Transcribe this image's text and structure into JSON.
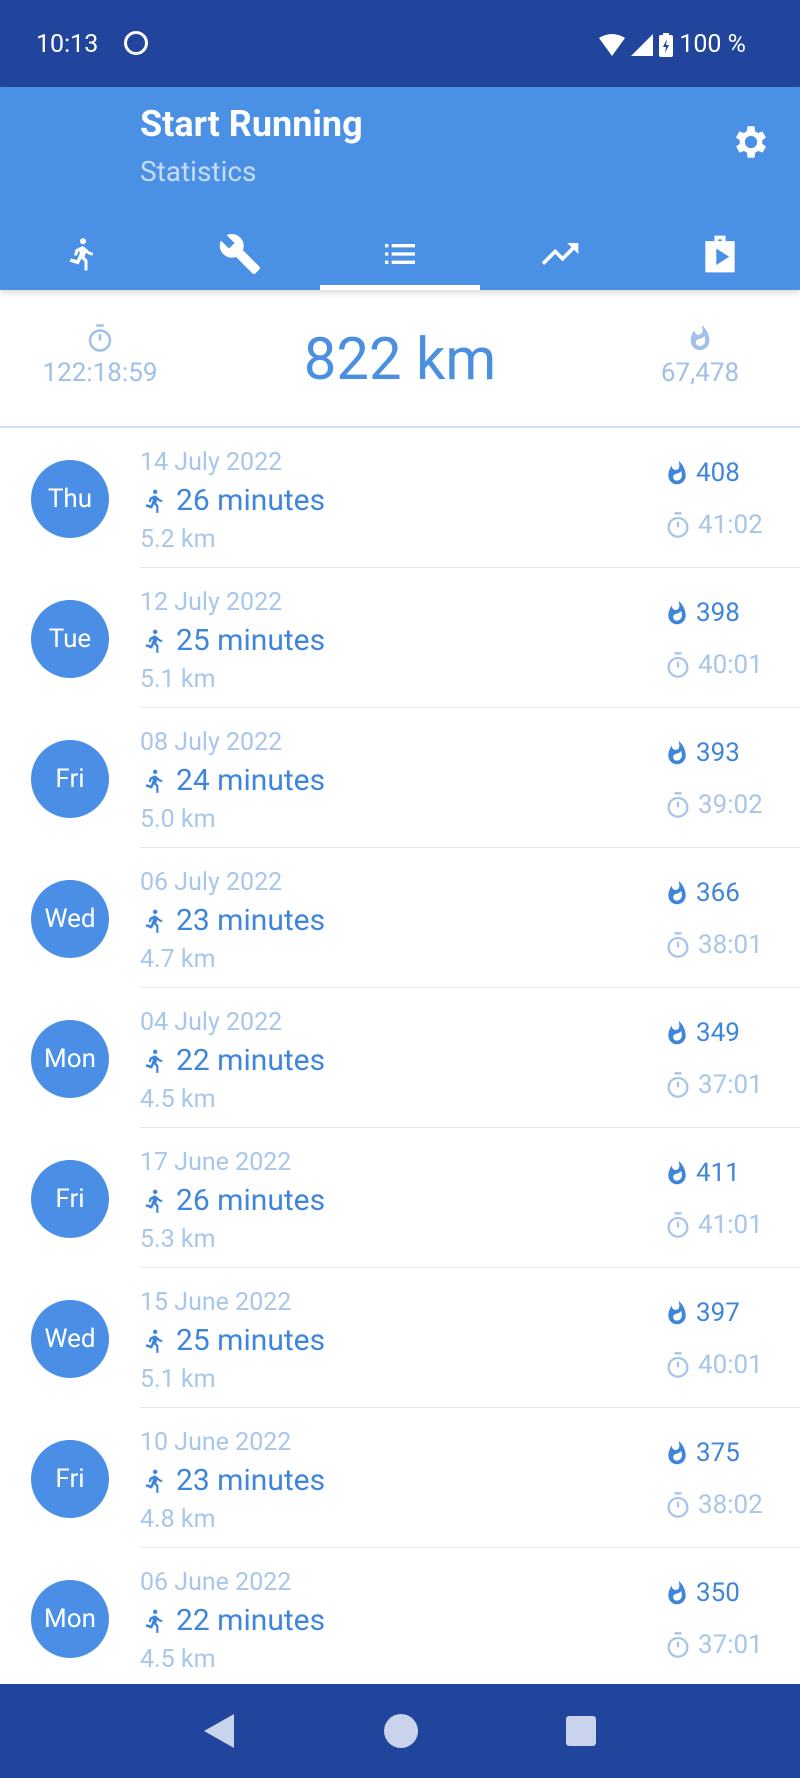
{
  "status_bar": {
    "time": "10:13",
    "battery": "100 %"
  },
  "header": {
    "title": "Start Running",
    "subtitle": "Statistics"
  },
  "tabs": [
    {
      "icon": "run-icon"
    },
    {
      "icon": "wrench-icon"
    },
    {
      "icon": "list-icon",
      "active": true
    },
    {
      "icon": "trending-up-icon"
    },
    {
      "icon": "play-bag-icon"
    }
  ],
  "summary": {
    "total_time": "122:18:59",
    "total_distance": "822 km",
    "total_calories": "67,478"
  },
  "runs": [
    {
      "day": "Thu",
      "date": "14 July 2022",
      "minutes": "26 minutes",
      "distance": "5.2 km",
      "calories": "408",
      "duration": "41:02"
    },
    {
      "day": "Tue",
      "date": "12 July 2022",
      "minutes": "25 minutes",
      "distance": "5.1 km",
      "calories": "398",
      "duration": "40:01"
    },
    {
      "day": "Fri",
      "date": "08 July 2022",
      "minutes": "24 minutes",
      "distance": "5.0 km",
      "calories": "393",
      "duration": "39:02"
    },
    {
      "day": "Wed",
      "date": "06 July 2022",
      "minutes": "23 minutes",
      "distance": "4.7 km",
      "calories": "366",
      "duration": "38:01"
    },
    {
      "day": "Mon",
      "date": "04 July 2022",
      "minutes": "22 minutes",
      "distance": "4.5 km",
      "calories": "349",
      "duration": "37:01"
    },
    {
      "day": "Fri",
      "date": "17 June 2022",
      "minutes": "26 minutes",
      "distance": "5.3 km",
      "calories": "411",
      "duration": "41:01"
    },
    {
      "day": "Wed",
      "date": "15 June 2022",
      "minutes": "25 minutes",
      "distance": "5.1 km",
      "calories": "397",
      "duration": "40:01"
    },
    {
      "day": "Fri",
      "date": "10 June 2022",
      "minutes": "23 minutes",
      "distance": "4.8 km",
      "calories": "375",
      "duration": "38:02"
    },
    {
      "day": "Mon",
      "date": "06 June 2022",
      "minutes": "22 minutes",
      "distance": "4.5 km",
      "calories": "350",
      "duration": "37:01"
    }
  ],
  "colors": {
    "status_bar": "#21459c",
    "app_bar": "#4a90e5",
    "accent": "#3f86db",
    "muted": "#a8c6ea"
  }
}
